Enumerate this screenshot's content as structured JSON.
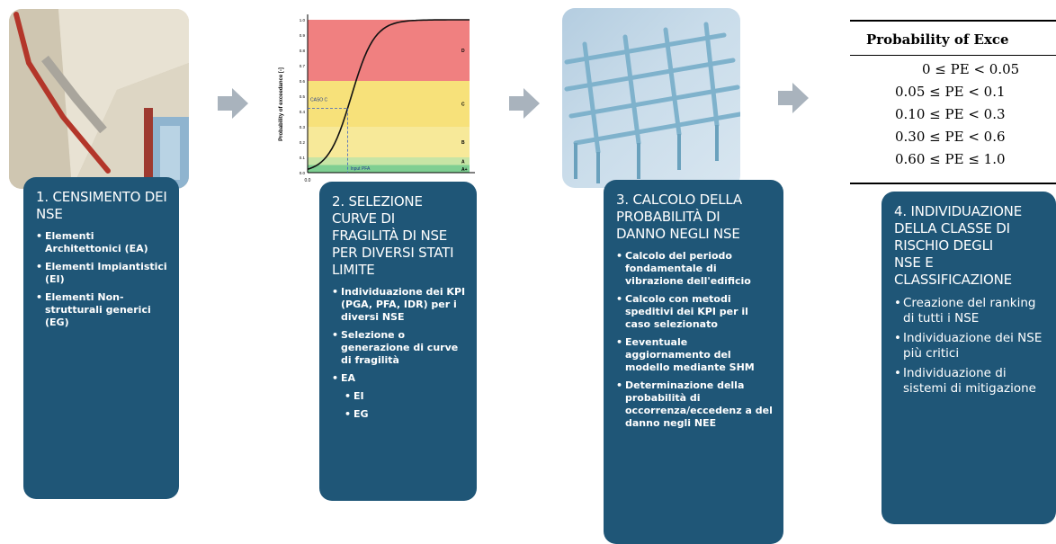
{
  "boxes": [
    {
      "title": "1. CENSIMENTO DEI\nNSE",
      "items": [
        {
          "text": "Elementi Architettonici (EA)"
        },
        {
          "text": "Elementi Impiantistici (EI)"
        },
        {
          "text": "Elementi Non-strutturali generici (EG)"
        }
      ]
    },
    {
      "title": "2. SELEZIONE\nCURVE DI\nFRAGILITÀ DI NSE\nPER DIVERSI STATI\nLIMITE",
      "items": [
        {
          "text": "Individuazione dei KPI (PGA, PFA, IDR) per i diversi NSE"
        },
        {
          "text": "Selezione o generazione di curve di fragilità"
        },
        {
          "text": "EA"
        },
        {
          "text": "EI",
          "sub": true
        },
        {
          "text": "EG",
          "sub": true
        }
      ]
    },
    {
      "title": "3. CALCOLO DELLA\nPROBABILITÀ DI\nDANNO NEGLI NSE",
      "items": [
        {
          "text": "Calcolo del periodo fondamentale di vibrazione dell'edificio"
        },
        {
          "text": "Calcolo con metodi speditivi dei KPI per il caso selezionato"
        },
        {
          "text": "Eeventuale aggiornamento del modello mediante SHM"
        },
        {
          "text": "Determinazione della probabilità di occorrenza/eccedenz a del danno negli NEE"
        }
      ]
    },
    {
      "title": "4. INDIVIDUAZIONE\nDELLA CLASSE DI\nRISCHIO DEGLI\nNSE E\nCLASSIFICAZIONE",
      "items": [
        {
          "text": "Creazione del ranking di tutti i NSE"
        },
        {
          "text": "Individuazione dei NSE più critici"
        },
        {
          "text": "Individuazione di sistemi di mitigazione"
        }
      ]
    }
  ],
  "fragility_chart": {
    "ylabel": "Probability of exceedance [-]",
    "y_ticks": [
      "0.0",
      "0.1",
      "0.2",
      "0.3",
      "0.4",
      "0.5",
      "0.6",
      "0.7",
      "0.8",
      "0.9",
      "1.0"
    ],
    "x_tick": "0.0",
    "zones": [
      {
        "label": "D",
        "from": 0.6,
        "to": 1.0,
        "color": "#f08080"
      },
      {
        "label": "C",
        "from": 0.3,
        "to": 0.6,
        "color": "#f7e17a"
      },
      {
        "label": "B",
        "from": 0.1,
        "to": 0.3,
        "color": "#f7e999"
      },
      {
        "label": "A",
        "from": 0.05,
        "to": 0.1,
        "color": "#c7e5a5"
      },
      {
        "label": "A+",
        "from": 0.0,
        "to": 0.05,
        "color": "#7fcf92"
      }
    ],
    "curve_label": "CASO C",
    "marker_x_label": "Input PFA",
    "marker_pe": 0.42
  },
  "pe_table": {
    "header": "Probability of Exce",
    "rows": [
      "0 ≤ PE < 0.05",
      "0.05 ≤ PE < 0.1",
      "0.10 ≤ PE < 0.3",
      "0.30 ≤ PE < 0.6",
      "0.60 ≤ PE ≤ 1.0"
    ]
  }
}
